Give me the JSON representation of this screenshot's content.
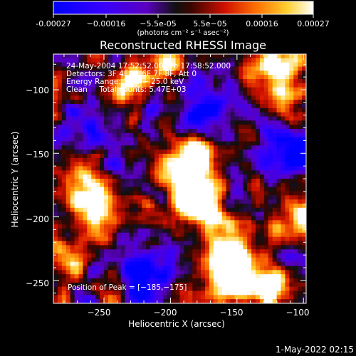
{
  "chart_data": {
    "type": "heatmap",
    "title": "Reconstructed RHESSI Image",
    "xlabel": "Heliocentric X (arcsec)",
    "ylabel": "Heliocentric Y (arcsec)",
    "xlim": [
      -288,
      -98
    ],
    "ylim": [
      -268,
      -72
    ],
    "x_ticks": [
      -250,
      -200,
      -150,
      -100
    ],
    "y_ticks": [
      -100,
      -150,
      -200,
      -250
    ],
    "x_tick_labels": [
      "−250",
      "−200",
      "−150",
      "−100"
    ],
    "y_tick_labels": [
      "−100",
      "−150",
      "−200",
      "−250"
    ],
    "colorbar": {
      "min": -0.00027,
      "max": 0.00027,
      "tick_labels": [
        "-0.00027",
        "−0.00016",
        "−5.5e-05",
        "5.5e−05",
        "0.00016",
        "0.00027"
      ],
      "unit_label": "(photons cm⁻² s⁻¹ asec⁻²)",
      "palette": [
        "#0000ff",
        "#5500cc",
        "#000000",
        "#7a1a00",
        "#ff1a00",
        "#ff9a00",
        "#ffff60",
        "#ffffff"
      ]
    },
    "annotations": {
      "time_range": "24‑May‑2004 17:52:52.000 to 17:58:52.000",
      "detectors": "Detectors: 3F 4F 5F 6F 7F 8F, Att 0",
      "energy_range": "Energy Range: 12.0 − 25.0 keV",
      "clean_line": "Clean     Total counts: 5.47E+03",
      "peak": "Position of Peak = [−185,−175]"
    },
    "peak_position": [
      -185,
      -175
    ],
    "image_grid_cells": [
      60,
      60
    ]
  },
  "footer": {
    "date_stamp": "1‑May‑2022 02:15"
  }
}
